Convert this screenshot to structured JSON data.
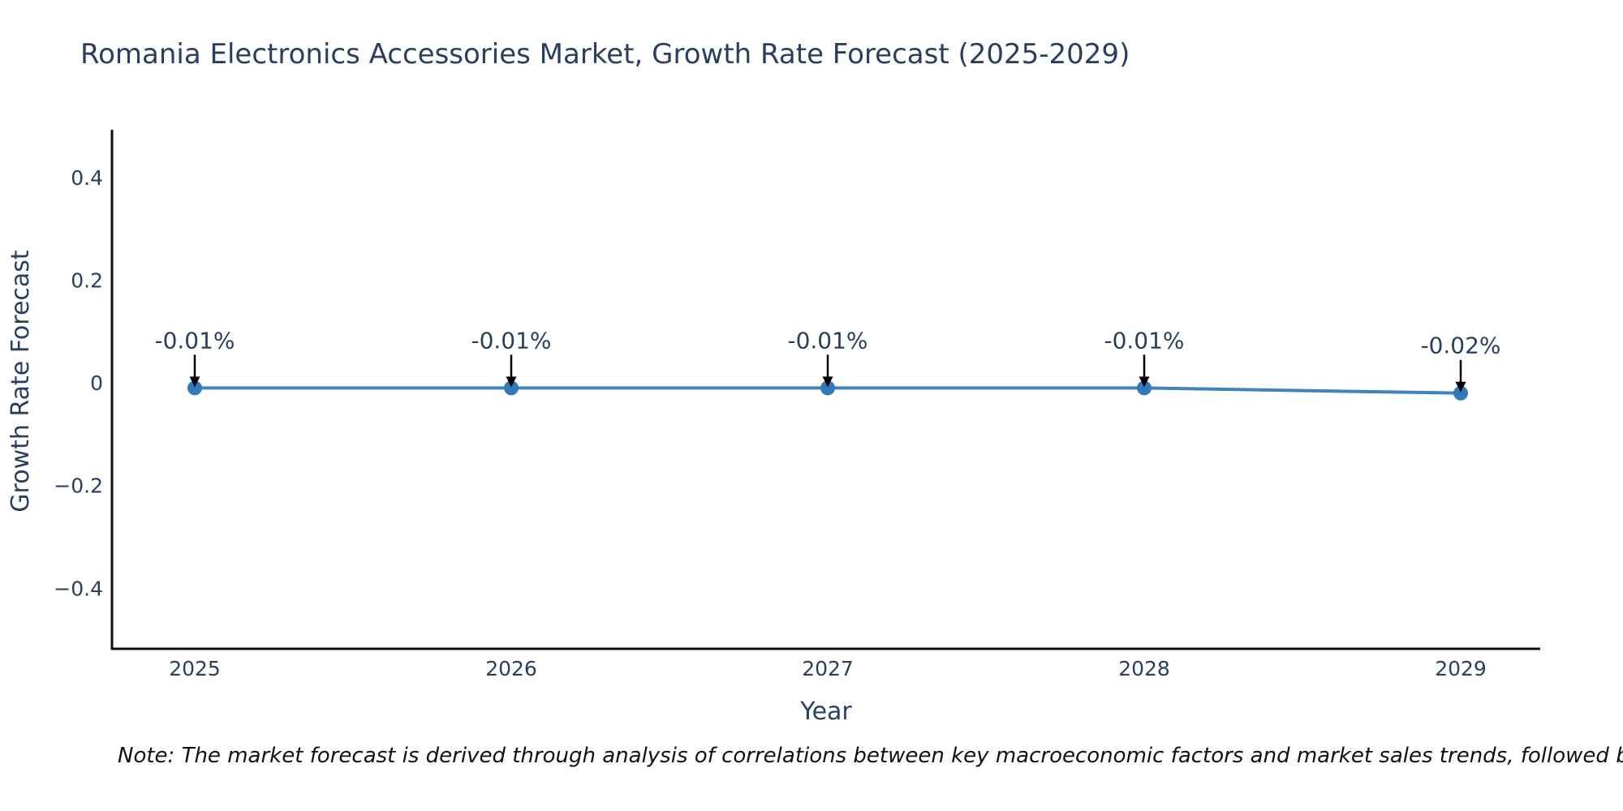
{
  "title": {
    "text": "Romania Electronics Accessories Market, Growth Rate Forecast (2025-2029)"
  },
  "note": {
    "text": "Note: The market forecast is derived through analysis of correlations between key macroeconomic factors and market sales trends, followed by predictive modeling to project future sa"
  },
  "chart_data": {
    "type": "line",
    "title": "Romania Electronics Accessories Market, Growth Rate Forecast (2025-2029)",
    "xlabel": "Year",
    "ylabel": "Growth Rate Forecast",
    "x": [
      2025,
      2026,
      2027,
      2028,
      2029
    ],
    "series": [
      {
        "name": "Growth Rate Forecast",
        "values": [
          -0.01,
          -0.01,
          -0.01,
          -0.01,
          -0.02
        ]
      }
    ],
    "point_labels": [
      "-0.01%",
      "-0.01%",
      "-0.01%",
      "-0.01%",
      "-0.02%"
    ],
    "yticks": {
      "values": [
        0.4,
        0.2,
        0,
        -0.2,
        -0.4
      ],
      "labels": [
        "0.4",
        "0.2",
        "0",
        "−0.2",
        "−0.4"
      ]
    },
    "xticks": {
      "values": [
        2025,
        2026,
        2027,
        2028,
        2029
      ],
      "labels": [
        "2025",
        "2026",
        "2027",
        "2028",
        "2029"
      ]
    },
    "ylim": [
      -0.518,
      0.493
    ],
    "grid": false,
    "legend": "none",
    "annotation_arrows": true
  },
  "colors": {
    "line": "#4383bb",
    "marker": "#3279b8",
    "text": "#2a3f5f",
    "axis_line": "#0f0f0f",
    "arrow": "#000000",
    "note_text": "#111111",
    "background": "#ffffff"
  }
}
